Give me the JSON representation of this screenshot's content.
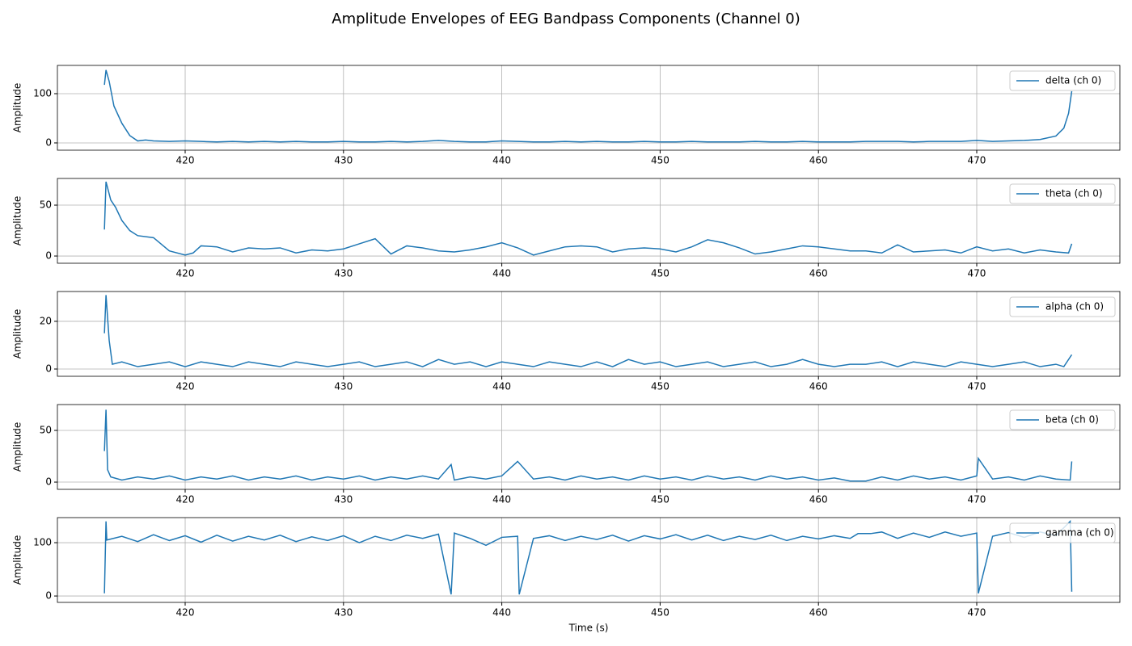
{
  "title": "Amplitude Envelopes of EEG Bandpass Components (Channel 0)",
  "chart_data": [
    {
      "type": "line",
      "ylabel": "Amplitude",
      "xlim": [
        411.93,
        479.04
      ],
      "ylim": [
        -14.8,
        157.4
      ],
      "xticks": [
        420,
        430,
        440,
        450,
        460,
        470
      ],
      "yticks": [
        0,
        100
      ],
      "grid": true,
      "legend": "upper right",
      "x": [
        414.9,
        415.0,
        415.2,
        415.5,
        416,
        416.5,
        417,
        417.5,
        418,
        419,
        420,
        421,
        422,
        423,
        424,
        425,
        426,
        427,
        428,
        429,
        430,
        431,
        432,
        433,
        434,
        435,
        436,
        437,
        438,
        439,
        440,
        441,
        442,
        443,
        444,
        445,
        446,
        447,
        448,
        449,
        450,
        451,
        452,
        453,
        454,
        455,
        456,
        457,
        458,
        459,
        460,
        461,
        462,
        463,
        464,
        465,
        466,
        467,
        468,
        469,
        470,
        471,
        472,
        473,
        474,
        475,
        475.5,
        475.8,
        476.0
      ],
      "series": [
        {
          "name": "delta (ch 0)",
          "color": "#1f77b4",
          "values": [
            118,
            148,
            125,
            75,
            40,
            15,
            4,
            6,
            4,
            3,
            4,
            3,
            2,
            3,
            2,
            3,
            2,
            3,
            2,
            2,
            3,
            2,
            2,
            3,
            2,
            3,
            5,
            3,
            2,
            2,
            4,
            3,
            2,
            2,
            3,
            2,
            3,
            2,
            2,
            3,
            2,
            2,
            3,
            2,
            2,
            2,
            3,
            2,
            2,
            3,
            2,
            2,
            2,
            3,
            3,
            3,
            2,
            3,
            3,
            3,
            5,
            3,
            4,
            5,
            7,
            14,
            30,
            60,
            105
          ]
        }
      ]
    },
    {
      "type": "line",
      "ylabel": "Amplitude",
      "xlim": [
        411.93,
        479.04
      ],
      "ylim": [
        -7.1,
        76.2
      ],
      "xticks": [
        420,
        430,
        440,
        450,
        460,
        470
      ],
      "yticks": [
        0,
        50
      ],
      "grid": true,
      "legend": "upper right",
      "x": [
        414.9,
        415.0,
        415.3,
        415.6,
        416,
        416.5,
        417,
        418,
        419,
        420,
        420.5,
        421,
        422,
        423,
        424,
        425,
        426,
        427,
        428,
        429,
        430,
        431,
        432,
        433,
        434,
        435,
        436,
        437,
        438,
        439,
        440,
        441,
        442,
        443,
        444,
        445,
        446,
        447,
        448,
        449,
        450,
        451,
        452,
        453,
        454,
        455,
        456,
        457,
        458,
        459,
        460,
        461,
        462,
        463,
        464,
        465,
        466,
        467,
        468,
        469,
        470,
        471,
        472,
        473,
        474,
        475,
        475.8,
        476
      ],
      "series": [
        {
          "name": "theta (ch 0)",
          "color": "#1f77b4",
          "values": [
            26,
            73,
            55,
            48,
            35,
            25,
            20,
            18,
            5,
            1,
            3,
            10,
            9,
            4,
            8,
            7,
            8,
            3,
            6,
            5,
            7,
            12,
            17,
            2,
            10,
            8,
            5,
            4,
            6,
            9,
            13,
            8,
            1,
            5,
            9,
            10,
            9,
            4,
            7,
            8,
            7,
            4,
            9,
            16,
            13,
            8,
            2,
            4,
            7,
            10,
            9,
            7,
            5,
            5,
            3,
            11,
            4,
            5,
            6,
            3,
            9,
            5,
            7,
            3,
            6,
            4,
            3,
            12
          ]
        }
      ]
    },
    {
      "type": "line",
      "ylabel": "Amplitude",
      "xlim": [
        411.93,
        479.04
      ],
      "ylim": [
        -3.05,
        32.5
      ],
      "xticks": [
        420,
        430,
        440,
        450,
        460,
        470
      ],
      "yticks": [
        0,
        20
      ],
      "grid": true,
      "legend": "upper right",
      "x": [
        414.9,
        415.0,
        415.2,
        415.4,
        416,
        417,
        418,
        419,
        420,
        421,
        422,
        423,
        424,
        425,
        426,
        427,
        428,
        429,
        430,
        431,
        432,
        433,
        434,
        435,
        436,
        437,
        438,
        439,
        440,
        441,
        442,
        443,
        444,
        445,
        446,
        447,
        448,
        449,
        450,
        451,
        452,
        453,
        454,
        455,
        456,
        457,
        458,
        459,
        460,
        461,
        462,
        463,
        464,
        465,
        466,
        467,
        468,
        469,
        470,
        471,
        472,
        473,
        474,
        475,
        475.5,
        476
      ],
      "series": [
        {
          "name": "alpha (ch 0)",
          "color": "#1f77b4",
          "values": [
            15,
            31,
            12,
            2,
            3,
            1,
            2,
            3,
            1,
            3,
            2,
            1,
            3,
            2,
            1,
            3,
            2,
            1,
            2,
            3,
            1,
            2,
            3,
            1,
            4,
            2,
            3,
            1,
            3,
            2,
            1,
            3,
            2,
            1,
            3,
            1,
            4,
            2,
            3,
            1,
            2,
            3,
            1,
            2,
            3,
            1,
            2,
            4,
            2,
            1,
            2,
            2,
            3,
            1,
            3,
            2,
            1,
            3,
            2,
            1,
            2,
            3,
            1,
            2,
            1,
            6
          ]
        }
      ]
    },
    {
      "type": "line",
      "ylabel": "Amplitude",
      "xlim": [
        411.93,
        479.04
      ],
      "ylim": [
        -7.0,
        75.0
      ],
      "xticks": [
        420,
        430,
        440,
        450,
        460,
        470
      ],
      "yticks": [
        0,
        50
      ],
      "grid": true,
      "legend": "upper right",
      "x": [
        414.9,
        415.0,
        415.1,
        415.3,
        416,
        417,
        418,
        419,
        420,
        421,
        422,
        423,
        424,
        425,
        426,
        427,
        428,
        429,
        430,
        431,
        432,
        433,
        434,
        435,
        436,
        436.8,
        437,
        438,
        439,
        440,
        441,
        442,
        443,
        444,
        445,
        446,
        447,
        448,
        449,
        450,
        451,
        452,
        453,
        454,
        455,
        456,
        457,
        458,
        459,
        460,
        461,
        462,
        463,
        464,
        465,
        466,
        467,
        468,
        469,
        470,
        470.1,
        471,
        472,
        473,
        474,
        475,
        475.9,
        476
      ],
      "series": [
        {
          "name": "beta (ch 0)",
          "color": "#1f77b4",
          "values": [
            30,
            70,
            12,
            5,
            2,
            5,
            3,
            6,
            2,
            5,
            3,
            6,
            2,
            5,
            3,
            6,
            2,
            5,
            3,
            6,
            2,
            5,
            3,
            6,
            3,
            17,
            2,
            5,
            3,
            6,
            20,
            3,
            5,
            2,
            6,
            3,
            5,
            2,
            6,
            3,
            5,
            2,
            6,
            3,
            5,
            2,
            6,
            3,
            5,
            2,
            4,
            1,
            1,
            5,
            2,
            6,
            3,
            5,
            2,
            6,
            23,
            3,
            5,
            2,
            6,
            3,
            2,
            20
          ]
        }
      ]
    },
    {
      "type": "line",
      "ylabel": "Amplitude",
      "xlabel": "Time (s)",
      "xlim": [
        411.93,
        479.04
      ],
      "ylim": [
        -12.0,
        147.0
      ],
      "xticks": [
        420,
        430,
        440,
        450,
        460,
        470
      ],
      "yticks": [
        0,
        100
      ],
      "grid": true,
      "legend": "upper right",
      "x": [
        414.9,
        415.0,
        415.05,
        416,
        417,
        418,
        419,
        420,
        421,
        422,
        423,
        424,
        425,
        426,
        427,
        428,
        429,
        430,
        431,
        432,
        433,
        434,
        435,
        436,
        436.8,
        437,
        438,
        439,
        440,
        441,
        441.1,
        442,
        443,
        444,
        445,
        446,
        447,
        448,
        449,
        450,
        451,
        452,
        453,
        454,
        455,
        456,
        457,
        458,
        459,
        460,
        461,
        462,
        462.5,
        463.3,
        464,
        465,
        466,
        467,
        468,
        469,
        470,
        470.1,
        471,
        472,
        473,
        474,
        475,
        475.9,
        476
      ],
      "series": [
        {
          "name": "gamma (ch 0)",
          "color": "#1f77b4",
          "values": [
            5,
            140,
            105,
            112,
            102,
            115,
            104,
            113,
            101,
            114,
            103,
            112,
            105,
            114,
            102,
            111,
            104,
            113,
            100,
            112,
            104,
            114,
            108,
            116,
            3,
            118,
            108,
            95,
            110,
            112,
            3,
            108,
            113,
            104,
            112,
            106,
            114,
            103,
            113,
            107,
            115,
            105,
            114,
            104,
            112,
            106,
            114,
            104,
            112,
            107,
            113,
            108,
            117,
            117,
            120,
            108,
            118,
            110,
            120,
            112,
            118,
            5,
            112,
            119,
            110,
            120,
            113,
            140,
            8
          ]
        }
      ]
    }
  ]
}
